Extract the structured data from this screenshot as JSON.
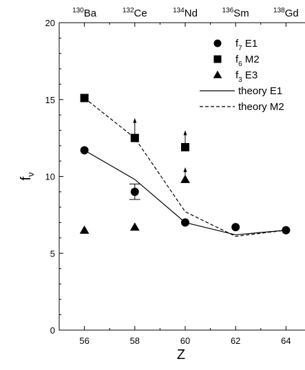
{
  "chart_data": {
    "type": "scatter",
    "xlabel": "Z",
    "ylabel": {
      "main": "f",
      "sub": "ν"
    },
    "xlim": [
      55,
      65
    ],
    "ylim": [
      0,
      20
    ],
    "x_ticks": [
      56,
      58,
      60,
      62,
      64
    ],
    "y_ticks": [
      0,
      5,
      10,
      15,
      20
    ],
    "grid": false,
    "legend_position": "top-right",
    "top_labels": [
      {
        "mass": "130",
        "element": "Ba",
        "z": 56
      },
      {
        "mass": "132",
        "element": "Ce",
        "z": 58
      },
      {
        "mass": "134",
        "element": "Nd",
        "z": 60
      },
      {
        "mass": "136",
        "element": "Sm",
        "z": 62
      },
      {
        "mass": "138",
        "element": "Gd",
        "z": 64
      }
    ],
    "series": [
      {
        "name": "f7 E1",
        "label": {
          "main": "f",
          "sub": "7",
          "rest": "  E1"
        },
        "marker": "circle",
        "x": [
          56,
          58,
          60,
          62,
          64
        ],
        "y": [
          11.7,
          9.0,
          7.0,
          6.7,
          6.5
        ],
        "error": {
          "x": 58,
          "low": 8.5,
          "high": 9.5
        }
      },
      {
        "name": "f6 M2",
        "label": {
          "main": "f",
          "sub": "6",
          "rest": "  M2"
        },
        "marker": "square",
        "x": [
          56,
          58,
          60
        ],
        "y": [
          15.1,
          12.5,
          11.9
        ],
        "lower_limits": [
          {
            "x": 58,
            "from": 12.5,
            "to": 13.8
          },
          {
            "x": 60,
            "from": 11.9,
            "to": 13.0
          }
        ]
      },
      {
        "name": "f3 E3",
        "label": {
          "main": "f",
          "sub": "3",
          "rest": "  E3"
        },
        "marker": "triangle",
        "x": [
          56,
          58,
          60
        ],
        "y": [
          6.5,
          6.7,
          9.8
        ],
        "lower_limits": [
          {
            "x": 60,
            "from": 9.8,
            "to": 10.6
          }
        ]
      },
      {
        "name": "theory E1",
        "label": {
          "main": "theory E1"
        },
        "line": "solid",
        "x": [
          56,
          58,
          60,
          62,
          64
        ],
        "y": [
          11.7,
          9.8,
          7.0,
          6.2,
          6.5
        ]
      },
      {
        "name": "theory M2",
        "label": {
          "main": "theory M2"
        },
        "line": "dashed",
        "x": [
          56,
          58,
          60,
          62,
          64
        ],
        "y": [
          15.1,
          12.5,
          7.7,
          6.1,
          6.5
        ]
      }
    ]
  }
}
